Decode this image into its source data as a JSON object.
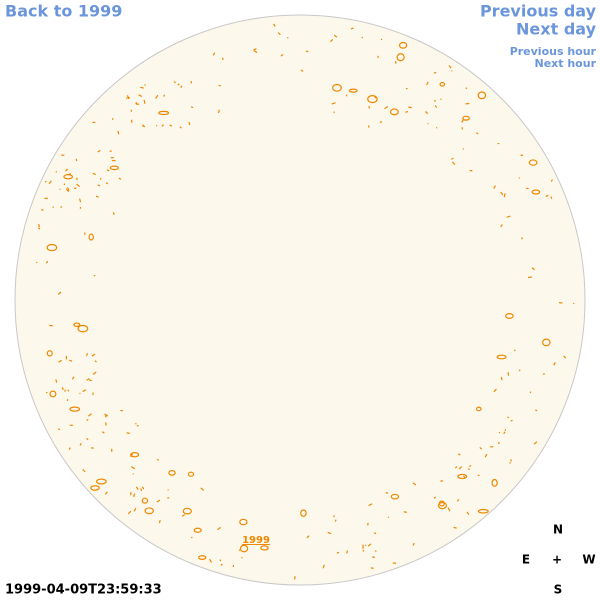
{
  "nav": {
    "back": "Back to 1999",
    "previous_day": "Previous day",
    "next_day": "Next day",
    "previous_hour": "Previous hour",
    "next_hour": "Next hour"
  },
  "disk_label": "1999",
  "timestamp": "1999-04-09T23:59:33",
  "compass": {
    "north": "N",
    "east": "E",
    "center": "+",
    "west": "W",
    "south": "S"
  }
}
